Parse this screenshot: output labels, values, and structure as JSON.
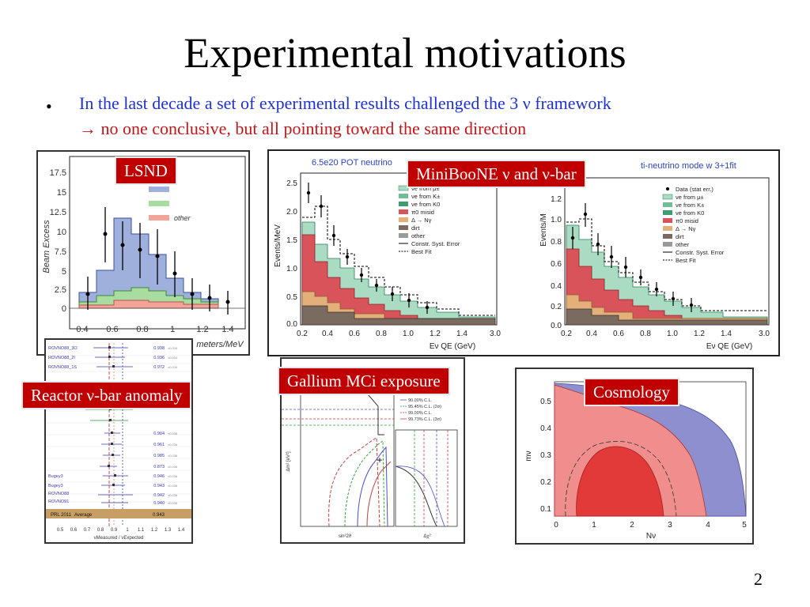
{
  "slide": {
    "title": "Experimental motivations",
    "bullet_line1": "In the last decade a set of experimental results challenged the 3 ν framework",
    "arrow": "→",
    "bullet_line2": "no one conclusive, but all pointing toward the same direction",
    "page_number": "2"
  },
  "labels": {
    "lsnd": "LSND",
    "miniboone": "MiniBooNE ν and ν-bar",
    "reactor": "Reactor ν-bar anomaly",
    "gallium": "Gallium MCi exposure",
    "cosmology": "Cosmology"
  },
  "lsnd_plot": {
    "ylabel": "Beam Excess",
    "xlabel": "meters/MeV",
    "legend": [
      "other"
    ],
    "y_ticks": [
      "17.5",
      "15",
      "12.5",
      "10",
      "7.5",
      "5",
      "2.5",
      "0"
    ],
    "x_ticks": [
      "0.4",
      "0.6",
      "0.8",
      "1",
      "1.2",
      "1.4"
    ]
  },
  "miniboone_plot": {
    "left_title": "6.5e20 POT neutrino",
    "right_title": "ti-neutrino mode w 3+1fit",
    "left_ylabel": "Events/MeV",
    "right_ylabel": "Events/M",
    "xlabel": "Eν QE (GeV)",
    "left_y_ticks": [
      "2.5",
      "2.0",
      "1.5",
      "1.0",
      "0.5",
      "0.0"
    ],
    "right_y_ticks": [
      "1.2",
      "1.0",
      "0.8",
      "0.6",
      "0.4",
      "0.2",
      "0.0"
    ],
    "x_ticks": [
      "0.2",
      "0.4",
      "0.6",
      "0.8",
      "1.0",
      "1.2",
      "1.4",
      "3.0"
    ],
    "legend_left": [
      "νe from μ±",
      "νe from K±",
      "νe from K0",
      "π0 misid",
      "Δ → Nγ",
      "dirt",
      "other",
      "Constr. Syst. Error",
      "Best Fit"
    ],
    "legend_right": [
      "Data (stat err.)",
      "νe from μ±",
      "νe from K±",
      "νe from K0",
      "π0 misid",
      "Δ → Nγ",
      "dirt",
      "other",
      "Constr. Syst. Error",
      "Best Fit"
    ]
  },
  "reactor_plot": {
    "rows": [
      "ROVNO88_3O",
      "ROVNO88_2I",
      "ROVNO88_1S",
      "",
      "",
      "",
      "",
      "",
      "",
      "",
      "",
      "Bugey3",
      "Bugey3",
      "",
      "ROVNO88",
      "ROVNO91",
      "Average"
    ],
    "values": [
      "0.938",
      "0.936",
      "0.972",
      "0.953",
      "0.943",
      "0.948",
      "0.801",
      "0.904",
      "0.961",
      "0.985",
      "0.873",
      "0.946",
      "0.943",
      "0.942",
      "0.940",
      "0.940",
      "0.943"
    ],
    "average_label": "Average",
    "x_ticks": [
      "0.5",
      "0.6",
      "0.7",
      "0.8",
      "0.9",
      "1",
      "1.1",
      "1.2",
      "1.3",
      "1.4"
    ],
    "xlabel": "νMeasured / νExpected"
  },
  "gallium_plot": {
    "legend": [
      "90.00% C.L.",
      "95.45% C.L. (2σ)",
      "99.00% C.L.",
      "99.73% C.L. (3σ)"
    ],
    "ylabel": "Δm² [eV²]",
    "xlabel": "sin²2ϑ",
    "x2label": "Δχ²"
  },
  "cosmology_plot": {
    "y_ticks": [
      "0.5",
      "0.4",
      "0.3",
      "0.2",
      "0.1"
    ],
    "x_ticks": [
      "0",
      "1",
      "2",
      "3",
      "4",
      "5"
    ],
    "ylabel": "mν",
    "xlabel": "Nν"
  },
  "colors": {
    "title": "#000000",
    "bullet_blue": "#1f33cc",
    "bullet_red": "#c0171b",
    "label_bg": "#c00000"
  }
}
